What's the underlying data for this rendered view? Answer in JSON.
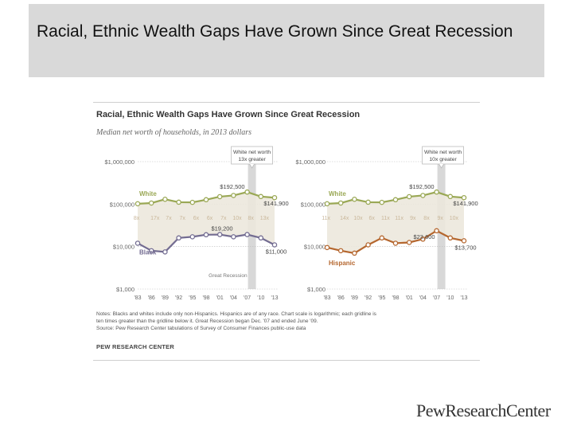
{
  "slide": {
    "title": "Racial, Ethnic Wealth Gaps Have Grown Since Great Recession"
  },
  "figure": {
    "title": "Racial, Ethnic Wealth Gaps Have Grown Since Great Recession",
    "subtitle": "Median net worth of households, in 2013 dollars",
    "notes": [
      "Notes: Blacks and whites include only non-Hispanics. Hispanics are of any race. Chart scale is logarithmic; each gridline is",
      "ten times greater than the gridline below it. Great Recession began Dec. '07 and ended June '09.",
      "Source: Pew Research Center tabulations of Survey of Consumer Finances public-use data"
    ],
    "source_org": "PEW RESEARCH CENTER"
  },
  "logo": {
    "text": "PewResearchCenter"
  },
  "colors": {
    "white": "#9aa855",
    "black": "#736c91",
    "hispanic": "#b5672f",
    "recession": "#d8d8d8"
  },
  "chart_data": [
    {
      "type": "line",
      "y_scale": "log",
      "ylim": [
        1000,
        1000000
      ],
      "yticks": [
        "$1,000,000",
        "$100,000",
        "$10,000",
        "$1,000"
      ],
      "categories": [
        "'83",
        "'86",
        "'89",
        "'92",
        "'95",
        "'98",
        "'01",
        "'04",
        "'07",
        "'10",
        "'13"
      ],
      "series": [
        {
          "name": "White",
          "values": [
            102000,
            106000,
            130000,
            111000,
            110000,
            127000,
            150000,
            160000,
            192500,
            151000,
            141900
          ]
        },
        {
          "name": "Black",
          "values": [
            12000,
            8000,
            7500,
            16000,
            17000,
            19000,
            19200,
            17000,
            19200,
            16000,
            11000
          ]
        }
      ],
      "ratios": [
        "8x",
        "17x",
        "7x",
        "7x",
        "6x",
        "6x",
        "7x",
        "10x",
        "8x",
        "13x"
      ],
      "point_labels": [
        "$192,500",
        "$141,900",
        "$19,200",
        "$11,000"
      ],
      "callout": [
        "White net worth",
        "13x greater"
      ],
      "annotation": "Great Recession"
    },
    {
      "type": "line",
      "y_scale": "log",
      "ylim": [
        1000,
        1000000
      ],
      "yticks": [
        "$1,000,000",
        "$100,000",
        "$10,000",
        "$1,000"
      ],
      "categories": [
        "'83",
        "'86",
        "'89",
        "'92",
        "'95",
        "'98",
        "'01",
        "'04",
        "'07",
        "'10",
        "'13"
      ],
      "series": [
        {
          "name": "White",
          "values": [
            102000,
            106000,
            130000,
            111000,
            110000,
            127000,
            150000,
            160000,
            192500,
            151000,
            141900
          ]
        },
        {
          "name": "Hispanic",
          "values": [
            9500,
            8000,
            7000,
            11000,
            16000,
            12000,
            12500,
            15000,
            23600,
            16000,
            13700
          ]
        }
      ],
      "ratios": [
        "11x",
        "14x",
        "10x",
        "6x",
        "11x",
        "11x",
        "9x",
        "8x",
        "9x",
        "10x"
      ],
      "point_labels": [
        "$192,500",
        "$141,900",
        "$23,600",
        "$13,700"
      ],
      "callout": [
        "White net worth",
        "10x greater"
      ]
    }
  ]
}
